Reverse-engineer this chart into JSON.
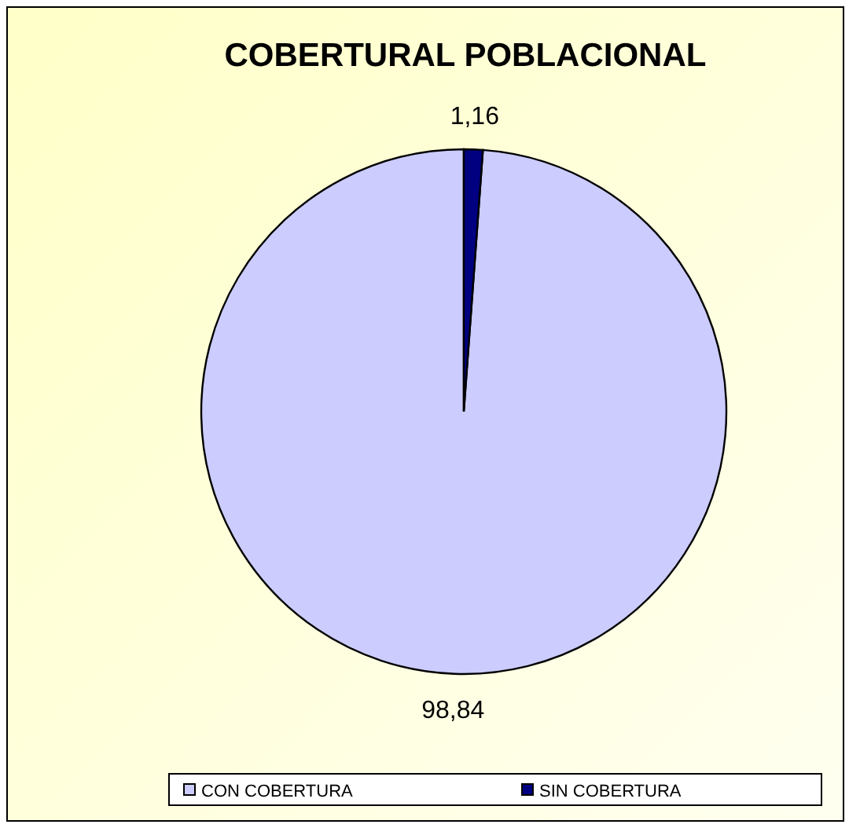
{
  "chart_data": {
    "type": "pie",
    "title": "COBERTURAL POBLACIONAL",
    "categories": [
      "CON COBERTURA",
      "SIN COBERTURA"
    ],
    "values": [
      98.84,
      1.16
    ],
    "value_labels": [
      "98,84",
      "1,16"
    ],
    "colors": [
      "#ccccff",
      "#000080"
    ],
    "legend": "bottom"
  }
}
